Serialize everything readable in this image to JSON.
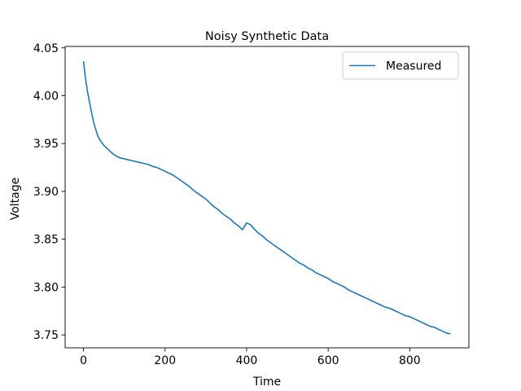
{
  "chart_data": {
    "type": "line",
    "title": "Noisy Synthetic Data",
    "xlabel": "Time",
    "ylabel": "Voltage",
    "xlim": [
      -45,
      945
    ],
    "ylim": [
      3.7365,
      4.0515
    ],
    "xticks": [
      0,
      200,
      400,
      600,
      800
    ],
    "yticks": [
      3.75,
      3.8,
      3.85,
      3.9,
      3.95,
      4.0,
      4.05
    ],
    "ytick_labels": [
      "3.75",
      "3.80",
      "3.85",
      "3.90",
      "3.95",
      "4.00",
      "4.05"
    ],
    "grid": false,
    "legend_position": "top-right",
    "series": [
      {
        "name": "Measured",
        "color": "#1f77b4",
        "x": [
          0,
          5,
          10,
          15,
          20,
          25,
          30,
          35,
          40,
          45,
          50,
          60,
          70,
          80,
          90,
          100,
          110,
          120,
          130,
          140,
          150,
          160,
          170,
          180,
          190,
          200,
          210,
          220,
          230,
          240,
          250,
          260,
          270,
          280,
          290,
          300,
          310,
          320,
          330,
          340,
          350,
          360,
          370,
          380,
          390,
          400,
          410,
          420,
          430,
          440,
          450,
          460,
          470,
          480,
          490,
          500,
          510,
          520,
          530,
          540,
          550,
          560,
          570,
          580,
          590,
          600,
          610,
          620,
          630,
          640,
          650,
          660,
          670,
          680,
          690,
          700,
          710,
          720,
          730,
          740,
          750,
          760,
          770,
          780,
          790,
          800,
          810,
          820,
          830,
          840,
          850,
          860,
          870,
          880,
          890,
          900
        ],
        "y": [
          4.036,
          4.018,
          4.004,
          3.993,
          3.982,
          3.972,
          3.965,
          3.958,
          3.954,
          3.951,
          3.948,
          3.944,
          3.94,
          3.937,
          3.935,
          3.934,
          3.933,
          3.932,
          3.931,
          3.93,
          3.929,
          3.928,
          3.926,
          3.925,
          3.923,
          3.921,
          3.919,
          3.917,
          3.914,
          3.911,
          3.908,
          3.905,
          3.901,
          3.898,
          3.895,
          3.892,
          3.888,
          3.884,
          3.881,
          3.877,
          3.874,
          3.871,
          3.867,
          3.864,
          3.86,
          3.867,
          3.865,
          3.86,
          3.856,
          3.853,
          3.849,
          3.846,
          3.843,
          3.84,
          3.837,
          3.834,
          3.831,
          3.828,
          3.825,
          3.823,
          3.82,
          3.818,
          3.815,
          3.813,
          3.811,
          3.809,
          3.806,
          3.804,
          3.802,
          3.8,
          3.797,
          3.795,
          3.793,
          3.791,
          3.789,
          3.787,
          3.785,
          3.783,
          3.781,
          3.779,
          3.778,
          3.776,
          3.774,
          3.772,
          3.77,
          3.769,
          3.767,
          3.765,
          3.763,
          3.761,
          3.759,
          3.758,
          3.756,
          3.754,
          3.752,
          3.751
        ]
      }
    ]
  }
}
